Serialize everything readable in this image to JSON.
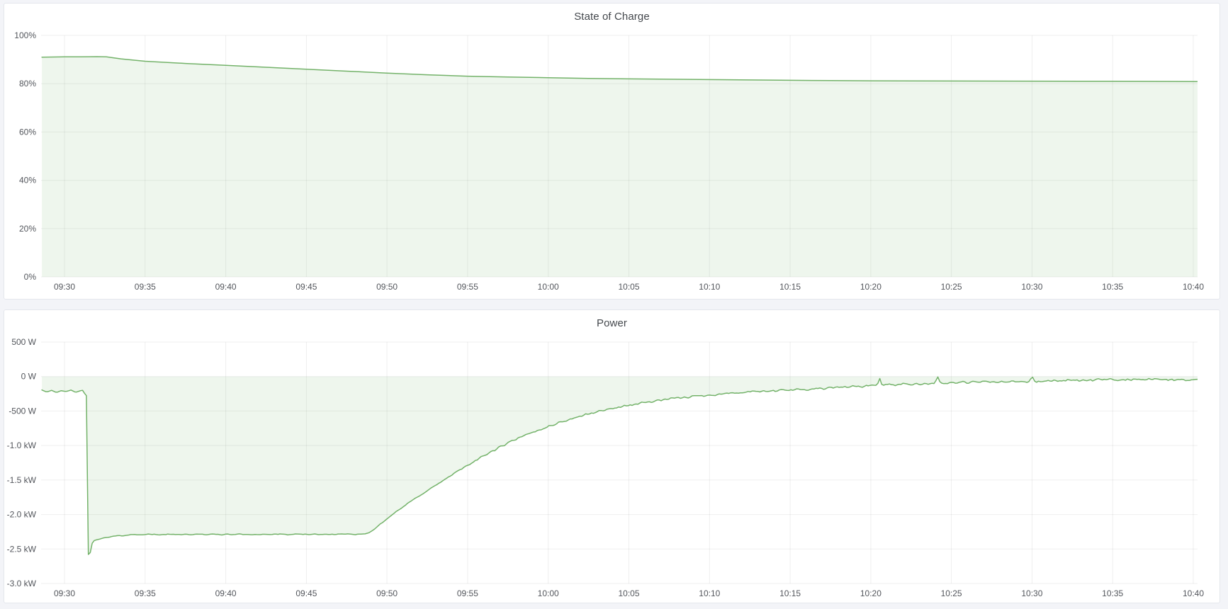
{
  "colors": {
    "page_background": "#f3f4f8",
    "panel_background": "#ffffff",
    "panel_border": "#e4e7ec",
    "title_text": "#44484d",
    "axis_text": "#53565c",
    "grid_line": "rgba(24,27,31,0.07)",
    "series_line": "#73b269",
    "series_fill": "rgba(115,178,105,0.12)"
  },
  "x_axis": {
    "tick_minutes": [
      0,
      5,
      10,
      15,
      20,
      25,
      30,
      35,
      40,
      45,
      50,
      55,
      60,
      65,
      70
    ],
    "tick_labels": [
      "09:30",
      "09:35",
      "09:40",
      "09:45",
      "09:50",
      "09:55",
      "10:00",
      "10:05",
      "10:10",
      "10:15",
      "10:20",
      "10:25",
      "10:30",
      "10:35",
      "10:40"
    ],
    "t_start": -1.45,
    "t_end": 70.3
  },
  "chart_data": [
    {
      "type": "area",
      "title": "State of Charge",
      "xlabel": "",
      "ylabel": "",
      "y_min": 0,
      "y_max": 100,
      "y_ticks": [
        {
          "v": 100,
          "label": "100%"
        },
        {
          "v": 80,
          "label": "80%"
        },
        {
          "v": 60,
          "label": "60%"
        },
        {
          "v": 40,
          "label": "40%"
        },
        {
          "v": 20,
          "label": "20%"
        },
        {
          "v": 0,
          "label": "0%"
        }
      ],
      "fill_to": 0,
      "grid": true,
      "legend": "none",
      "seed": 11,
      "sample_step": 0,
      "series": [
        {
          "name": "State of Charge (%)",
          "points": [
            [
              -1.4,
              91.0
            ],
            [
              0,
              91.1
            ],
            [
              1,
              91.15
            ],
            [
              2,
              91.2
            ],
            [
              2.6,
              91.1
            ],
            [
              3.5,
              90.3
            ],
            [
              5,
              89.3
            ],
            [
              7.5,
              88.4
            ],
            [
              10,
              87.6
            ],
            [
              12.5,
              86.8
            ],
            [
              15,
              86.0
            ],
            [
              17.5,
              85.2
            ],
            [
              20,
              84.4
            ],
            [
              22.5,
              83.7
            ],
            [
              25,
              83.1
            ],
            [
              27.5,
              82.8
            ],
            [
              30,
              82.5
            ],
            [
              32.5,
              82.2
            ],
            [
              35,
              82.0
            ],
            [
              37.5,
              81.85
            ],
            [
              40,
              81.7
            ],
            [
              42.5,
              81.55
            ],
            [
              45,
              81.4
            ],
            [
              47.5,
              81.3
            ],
            [
              50,
              81.2
            ],
            [
              55,
              81.1
            ],
            [
              60,
              81.05
            ],
            [
              65,
              81.0
            ],
            [
              70,
              80.9
            ],
            [
              70.3,
              80.9
            ]
          ],
          "noise_segments": []
        }
      ]
    },
    {
      "type": "area",
      "title": "Power",
      "xlabel": "",
      "ylabel": "",
      "y_min": -3000,
      "y_max": 500,
      "y_ticks": [
        {
          "v": 500,
          "label": "500 W"
        },
        {
          "v": 0,
          "label": "0 W"
        },
        {
          "v": -500,
          "label": "-500 W"
        },
        {
          "v": -1000,
          "label": "-1.0 kW"
        },
        {
          "v": -1500,
          "label": "-1.5 kW"
        },
        {
          "v": -2000,
          "label": "-2.0 kW"
        },
        {
          "v": -2500,
          "label": "-2.5 kW"
        },
        {
          "v": -3000,
          "label": "-3.0 kW"
        }
      ],
      "fill_to": 0,
      "grid": true,
      "legend": "none",
      "seed": 42,
      "sample_step": 0.12,
      "series": [
        {
          "name": "Power (W)",
          "points": [
            [
              -1.4,
              -195
            ],
            [
              -1.1,
              -225
            ],
            [
              -0.8,
              -200
            ],
            [
              -0.5,
              -232
            ],
            [
              -0.2,
              -205
            ],
            [
              0.1,
              -218
            ],
            [
              0.4,
              -196
            ],
            [
              0.7,
              -230
            ],
            [
              0.95,
              -208
            ],
            [
              1.15,
              -198
            ],
            [
              1.3,
              -272
            ],
            [
              1.38,
              -278
            ],
            [
              1.45,
              -2560
            ],
            [
              1.55,
              -2625
            ],
            [
              1.68,
              -2430
            ],
            [
              1.85,
              -2375
            ],
            [
              2.3,
              -2350
            ],
            [
              3,
              -2318
            ],
            [
              4,
              -2295
            ],
            [
              5,
              -2288
            ],
            [
              6,
              -2292
            ],
            [
              7,
              -2286
            ],
            [
              8,
              -2291
            ],
            [
              9,
              -2287
            ],
            [
              10,
              -2290
            ],
            [
              11,
              -2286
            ],
            [
              12,
              -2290
            ],
            [
              13,
              -2287
            ],
            [
              14,
              -2290
            ],
            [
              15,
              -2286
            ],
            [
              16,
              -2289
            ],
            [
              17,
              -2287
            ],
            [
              18,
              -2289
            ],
            [
              18.8,
              -2276
            ],
            [
              19.2,
              -2218
            ],
            [
              19.6,
              -2132
            ],
            [
              20,
              -2058
            ],
            [
              20.5,
              -1974
            ],
            [
              21,
              -1890
            ],
            [
              21.5,
              -1806
            ],
            [
              22,
              -1728
            ],
            [
              22.5,
              -1654
            ],
            [
              23,
              -1580
            ],
            [
              23.5,
              -1506
            ],
            [
              24,
              -1432
            ],
            [
              24.5,
              -1356
            ],
            [
              25,
              -1284
            ],
            [
              25.5,
              -1216
            ],
            [
              26,
              -1150
            ],
            [
              26.5,
              -1086
            ],
            [
              27,
              -1024
            ],
            [
              27.5,
              -966
            ],
            [
              28,
              -912
            ],
            [
              28.5,
              -862
            ],
            [
              29,
              -814
            ],
            [
              29.5,
              -768
            ],
            [
              30,
              -724
            ],
            [
              30.5,
              -683
            ],
            [
              31,
              -644
            ],
            [
              31.5,
              -608
            ],
            [
              32,
              -574
            ],
            [
              32.5,
              -542
            ],
            [
              33,
              -513
            ],
            [
              33.5,
              -486
            ],
            [
              34,
              -461
            ],
            [
              34.5,
              -438
            ],
            [
              35,
              -416
            ],
            [
              35.5,
              -396
            ],
            [
              36,
              -377
            ],
            [
              36.5,
              -359
            ],
            [
              37,
              -343
            ],
            [
              37.5,
              -328
            ],
            [
              38,
              -314
            ],
            [
              38.5,
              -301
            ],
            [
              39,
              -288
            ],
            [
              39.5,
              -277
            ],
            [
              40,
              -266
            ],
            [
              41,
              -247
            ],
            [
              42,
              -231
            ],
            [
              43,
              -219
            ],
            [
              44,
              -208
            ],
            [
              45,
              -198
            ],
            [
              46,
              -185
            ],
            [
              47,
              -171
            ],
            [
              48,
              -157
            ],
            [
              49,
              -144
            ],
            [
              50,
              -133
            ],
            [
              50.4,
              -126
            ],
            [
              50.55,
              -22
            ],
            [
              50.7,
              -128
            ],
            [
              51,
              -119
            ],
            [
              52,
              -111
            ],
            [
              53,
              -104
            ],
            [
              54,
              -98
            ],
            [
              54.15,
              -12
            ],
            [
              54.3,
              -100
            ],
            [
              55,
              -91
            ],
            [
              56,
              -86
            ],
            [
              57,
              -81
            ],
            [
              58,
              -77
            ],
            [
              59,
              -73
            ],
            [
              59.85,
              -70
            ],
            [
              60,
              8
            ],
            [
              60.2,
              -85
            ],
            [
              61,
              -63
            ],
            [
              62,
              -57
            ],
            [
              63,
              -54
            ],
            [
              64,
              -51
            ],
            [
              65,
              -49
            ],
            [
              66,
              -47
            ],
            [
              67,
              -46
            ],
            [
              68,
              -44
            ],
            [
              69,
              -46
            ],
            [
              70,
              -48
            ],
            [
              70.3,
              -45
            ]
          ],
          "noise_segments": [
            {
              "from": -1.4,
              "to": 1.25,
              "amp": 0
            },
            {
              "from": 2.3,
              "to": 18.8,
              "amp": 9
            },
            {
              "from": 19.5,
              "to": 24.5,
              "amp": 10
            },
            {
              "from": 24.5,
              "to": 34,
              "amp": 18
            },
            {
              "from": 34,
              "to": 44,
              "amp": 20
            },
            {
              "from": 44,
              "to": 50.3,
              "amp": 22
            },
            {
              "from": 50.8,
              "to": 59.8,
              "amp": 24
            },
            {
              "from": 60.4,
              "to": 70.3,
              "amp": 24
            }
          ]
        }
      ]
    }
  ]
}
